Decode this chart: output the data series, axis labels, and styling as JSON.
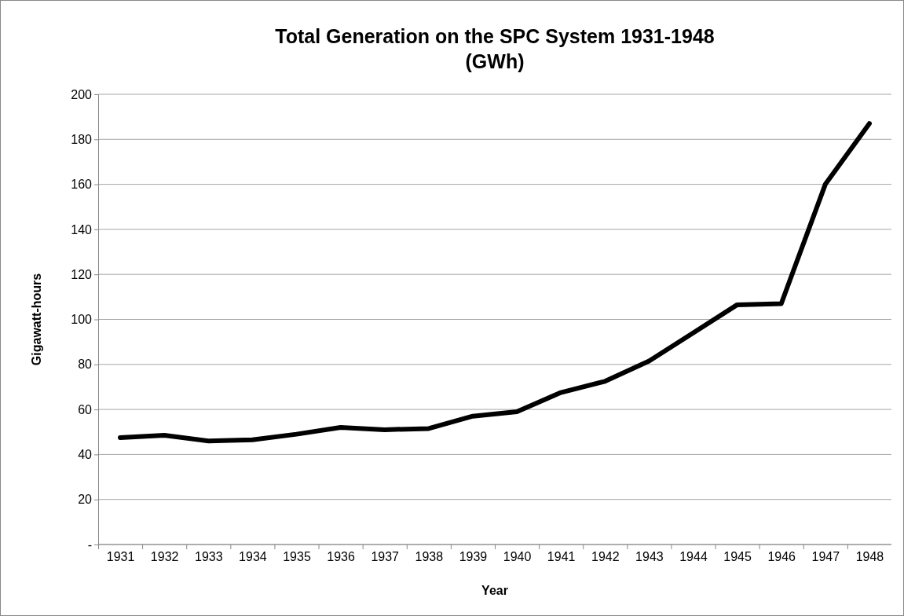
{
  "chart_data": {
    "type": "line",
    "title": "Total Generation on the SPC System 1931-1948\n(GWh)",
    "xlabel": "Year",
    "ylabel": "Gigawatt-hours",
    "categories": [
      "1931",
      "1932",
      "1933",
      "1934",
      "1935",
      "1936",
      "1937",
      "1938",
      "1939",
      "1940",
      "1941",
      "1942",
      "1943",
      "1944",
      "1945",
      "1946",
      "1947",
      "1948"
    ],
    "series": [
      {
        "color": "#000000",
        "values": [
          47.5,
          48.5,
          46,
          46.5,
          49,
          52,
          51,
          51.5,
          57,
          59,
          67.5,
          72.5,
          81.5,
          94,
          106.5,
          107,
          160,
          187
        ]
      }
    ],
    "ylim": [
      0,
      200
    ],
    "yticks": [
      {
        "value": 0,
        "label": "-"
      },
      20,
      40,
      60,
      80,
      100,
      120,
      140,
      160,
      180,
      200
    ],
    "grid": "y",
    "marker": "none",
    "line_style": "solid"
  }
}
